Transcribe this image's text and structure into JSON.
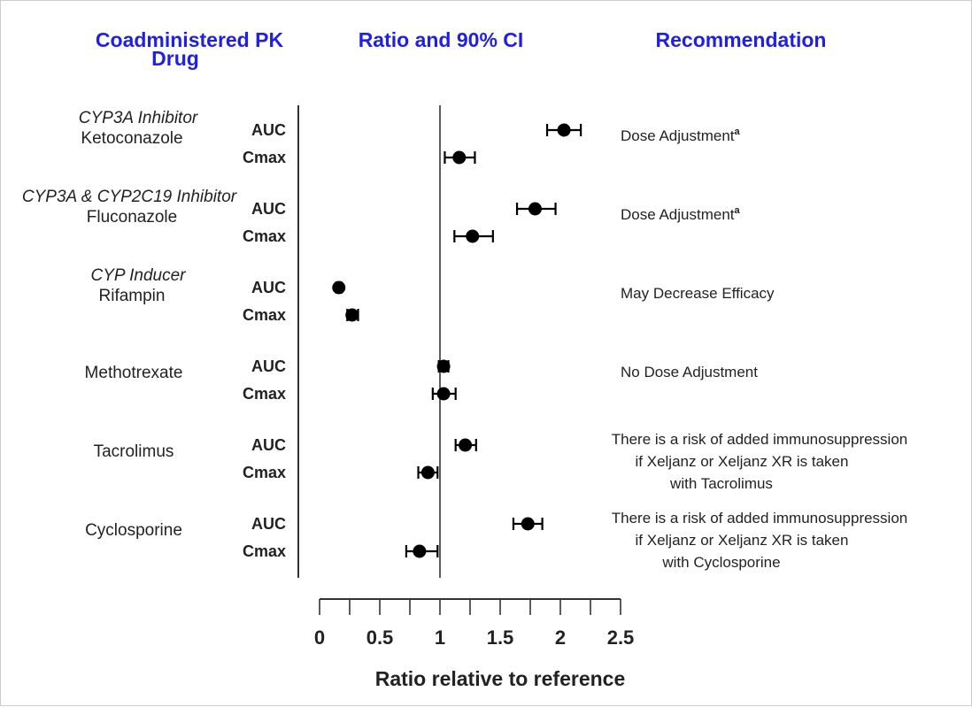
{
  "chart_data": {
    "type": "forest",
    "headers": {
      "drug_line1": "Coadministered PK",
      "drug_line2": "Drug",
      "ratio": "Ratio and 90% CI",
      "recommendation": "Recommendation"
    },
    "xlabel": "Ratio relative to reference",
    "xlim": [
      0,
      2.5
    ],
    "x_ticks": [
      "0",
      "0.5",
      "1",
      "1.5",
      "2",
      "2.5"
    ],
    "reference_line": 1,
    "colors": {
      "header": "#1f1fe6",
      "marker": "#000000",
      "text": "#222222"
    },
    "groups": [
      {
        "class_label": "CYP3A Inhibitor",
        "drug": "Ketoconazole",
        "recommendation": [
          "Dose Adjustment"
        ],
        "footnote": "a",
        "rows": [
          {
            "metric": "AUC",
            "ratio": 2.03,
            "ci": [
              1.89,
              2.17
            ]
          },
          {
            "metric": "Cmax",
            "ratio": 1.16,
            "ci": [
              1.04,
              1.29
            ]
          }
        ]
      },
      {
        "class_label": "CYP3A & CYP2C19 Inhibitor",
        "drug": "Fluconazole",
        "recommendation": [
          "Dose Adjustment"
        ],
        "footnote": "a",
        "rows": [
          {
            "metric": "AUC",
            "ratio": 1.79,
            "ci": [
              1.64,
              1.96
            ]
          },
          {
            "metric": "Cmax",
            "ratio": 1.27,
            "ci": [
              1.12,
              1.44
            ]
          }
        ]
      },
      {
        "class_label": "CYP Inducer",
        "drug": "Rifampin",
        "recommendation": [
          "May Decrease Efficacy"
        ],
        "rows": [
          {
            "metric": "AUC",
            "ratio": 0.16,
            "ci": [
              0.14,
              0.18
            ]
          },
          {
            "metric": "Cmax",
            "ratio": 0.27,
            "ci": [
              0.23,
              0.32
            ]
          }
        ]
      },
      {
        "drug": "Methotrexate",
        "recommendation": [
          "No Dose Adjustment"
        ],
        "rows": [
          {
            "metric": "AUC",
            "ratio": 1.03,
            "ci": [
              0.99,
              1.07
            ]
          },
          {
            "metric": "Cmax",
            "ratio": 1.03,
            "ci": [
              0.94,
              1.13
            ]
          }
        ]
      },
      {
        "drug": "Tacrolimus",
        "recommendation": [
          "There is a risk of added immunosuppression",
          "if Xeljanz or Xeljanz XR is taken",
          "with Tacrolimus"
        ],
        "rows": [
          {
            "metric": "AUC",
            "ratio": 1.21,
            "ci": [
              1.13,
              1.3
            ]
          },
          {
            "metric": "Cmax",
            "ratio": 0.9,
            "ci": [
              0.82,
              0.98
            ]
          }
        ]
      },
      {
        "drug": "Cyclosporine",
        "recommendation": [
          "There is a risk of added immunosuppression",
          "if Xeljanz or Xeljanz XR is taken",
          "with Cyclosporine"
        ],
        "rows": [
          {
            "metric": "AUC",
            "ratio": 1.73,
            "ci": [
              1.61,
              1.85
            ]
          },
          {
            "metric": "Cmax",
            "ratio": 0.83,
            "ci": [
              0.72,
              0.98
            ]
          }
        ]
      }
    ]
  }
}
